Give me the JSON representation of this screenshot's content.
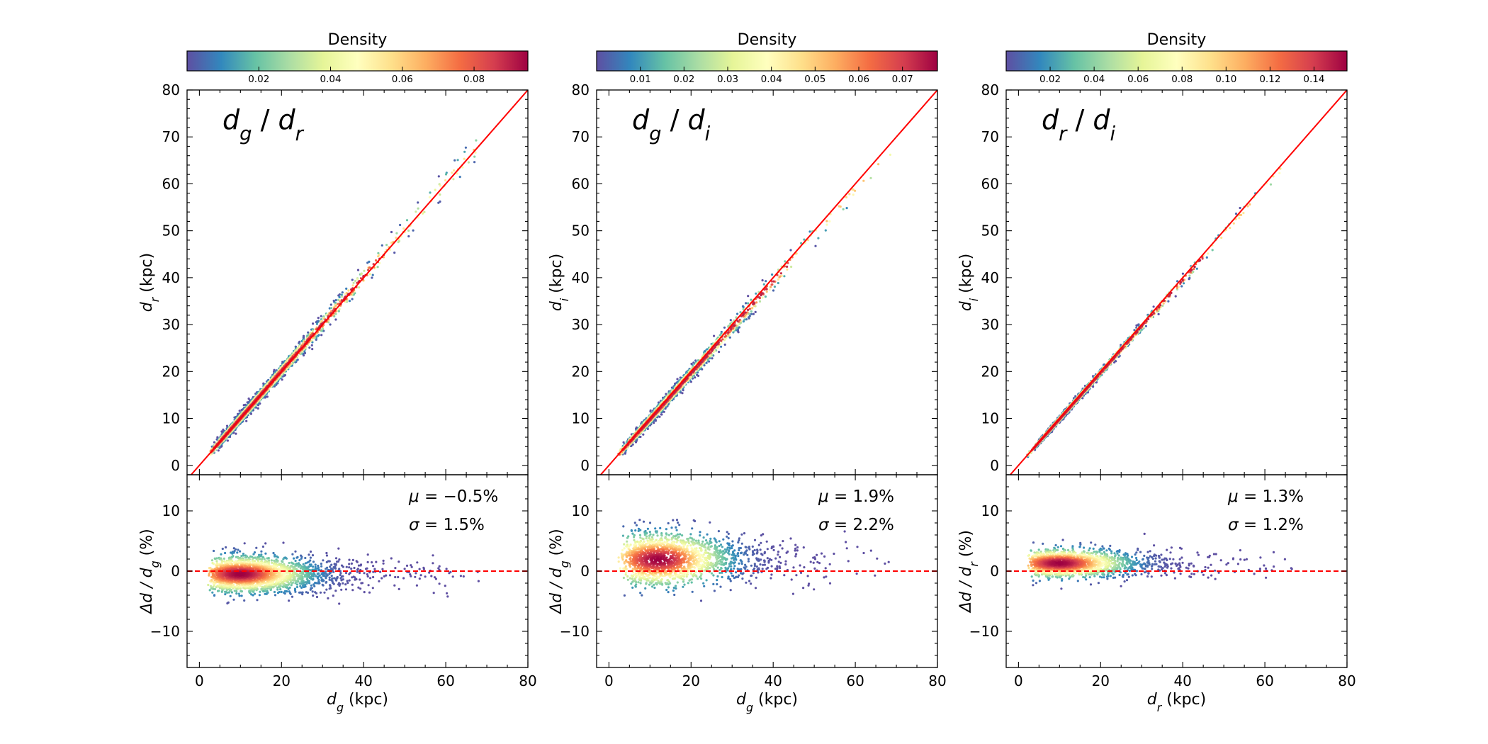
{
  "chart_data": [
    {
      "type": "scatter",
      "panel_label": "d_g / d_r",
      "label_main": [
        "d",
        "g",
        " / ",
        "d",
        "r"
      ],
      "colorbar": {
        "title": "Density",
        "range": [
          0.0,
          0.095
        ],
        "ticks": [
          "0.02",
          "0.04",
          "0.06",
          "0.08"
        ],
        "tick_values": [
          0.02,
          0.04,
          0.06,
          0.08
        ]
      },
      "top": {
        "xlim": [
          -3,
          80
        ],
        "ylim": [
          -2,
          80
        ],
        "yticks": [
          0,
          10,
          20,
          30,
          40,
          50,
          60,
          70,
          80
        ],
        "ylabel": [
          "d",
          "r",
          " (kpc)"
        ],
        "reference_line": "y = x",
        "trend": {
          "slope": 1.005,
          "spread": 0.9,
          "n_points": 2400,
          "x_range": [
            2,
            70
          ]
        }
      },
      "bottom": {
        "xlim": [
          -3,
          80
        ],
        "ylim": [
          -16,
          16
        ],
        "xticks": [
          0,
          20,
          40,
          60,
          80
        ],
        "yticks": [
          -10,
          0,
          10
        ],
        "xlabel": [
          "d",
          "g",
          " (kpc)"
        ],
        "ylabel": [
          "Δd / d",
          "g",
          " (%)"
        ],
        "reference_line": "y = 0",
        "mu": "−0.5%",
        "sigma": "1.5%",
        "mu_value": -0.5,
        "sigma_value": 1.5,
        "distribution": {
          "center_x": 10,
          "n_points": 2600,
          "x_range": [
            2,
            68
          ]
        }
      }
    },
    {
      "type": "scatter",
      "panel_label": "d_g / d_i",
      "label_main": [
        "d",
        "g",
        " / ",
        "d",
        "i"
      ],
      "colorbar": {
        "title": "Density",
        "range": [
          0.0,
          0.078
        ],
        "ticks": [
          "0.01",
          "0.02",
          "0.03",
          "0.04",
          "0.05",
          "0.06",
          "0.07"
        ],
        "tick_values": [
          0.01,
          0.02,
          0.03,
          0.04,
          0.05,
          0.06,
          0.07
        ]
      },
      "top": {
        "xlim": [
          -3,
          80
        ],
        "ylim": [
          -2,
          80
        ],
        "yticks": [
          0,
          10,
          20,
          30,
          40,
          50,
          60,
          70,
          80
        ],
        "ylabel": [
          "d",
          "i",
          " (kpc)"
        ],
        "reference_line": "y = x",
        "trend": {
          "slope": 0.981,
          "spread": 0.9,
          "n_points": 1800,
          "x_range": [
            2,
            69
          ]
        }
      },
      "bottom": {
        "xlim": [
          -3,
          80
        ],
        "ylim": [
          -16,
          16
        ],
        "xticks": [
          0,
          20,
          40,
          60,
          80
        ],
        "yticks": [
          -10,
          0,
          10
        ],
        "xlabel": [
          "d",
          "g",
          " (kpc)"
        ],
        "ylabel": [
          "Δd / d",
          "g",
          " (%)"
        ],
        "reference_line": "y = 0",
        "mu": "1.9%",
        "sigma": "2.2%",
        "mu_value": 1.9,
        "sigma_value": 2.2,
        "distribution": {
          "center_x": 12,
          "n_points": 1900,
          "x_range": [
            2,
            69
          ]
        }
      }
    },
    {
      "type": "scatter",
      "panel_label": "d_r / d_i",
      "label_main": [
        "d",
        "r",
        " / ",
        "d",
        "i"
      ],
      "colorbar": {
        "title": "Density",
        "range": [
          0.0,
          0.155
        ],
        "ticks": [
          "0.02",
          "0.04",
          "0.06",
          "0.08",
          "0.10",
          "0.12",
          "0.14"
        ],
        "tick_values": [
          0.02,
          0.04,
          0.06,
          0.08,
          0.1,
          0.12,
          0.14
        ]
      },
      "top": {
        "xlim": [
          -3,
          80
        ],
        "ylim": [
          -2,
          80
        ],
        "yticks": [
          0,
          10,
          20,
          30,
          40,
          50,
          60,
          70,
          80
        ],
        "ylabel": [
          "d",
          "i",
          " (kpc)"
        ],
        "reference_line": "y = x",
        "trend": {
          "slope": 0.987,
          "spread": 0.5,
          "n_points": 1800,
          "x_range": [
            2,
            69
          ]
        }
      },
      "bottom": {
        "xlim": [
          -3,
          80
        ],
        "ylim": [
          -16,
          16
        ],
        "xticks": [
          0,
          20,
          40,
          60,
          80
        ],
        "yticks": [
          -10,
          0,
          10
        ],
        "xlabel": [
          "d",
          "r",
          " (kpc)"
        ],
        "ylabel": [
          "Δd / d",
          "r",
          " (%)"
        ],
        "reference_line": "y = 0",
        "mu": "1.3%",
        "sigma": "1.2%",
        "mu_value": 1.3,
        "sigma_value": 1.2,
        "distribution": {
          "center_x": 10,
          "n_points": 1900,
          "x_range": [
            2,
            69
          ]
        }
      }
    }
  ],
  "colors": {
    "reference_line": "#ff0000",
    "colormap": [
      "#5e4fa2",
      "#3288bd",
      "#66c2a5",
      "#abdda4",
      "#e6f598",
      "#ffffbf",
      "#fee08b",
      "#fdae61",
      "#f46d43",
      "#d53e4f",
      "#9e0142"
    ]
  }
}
